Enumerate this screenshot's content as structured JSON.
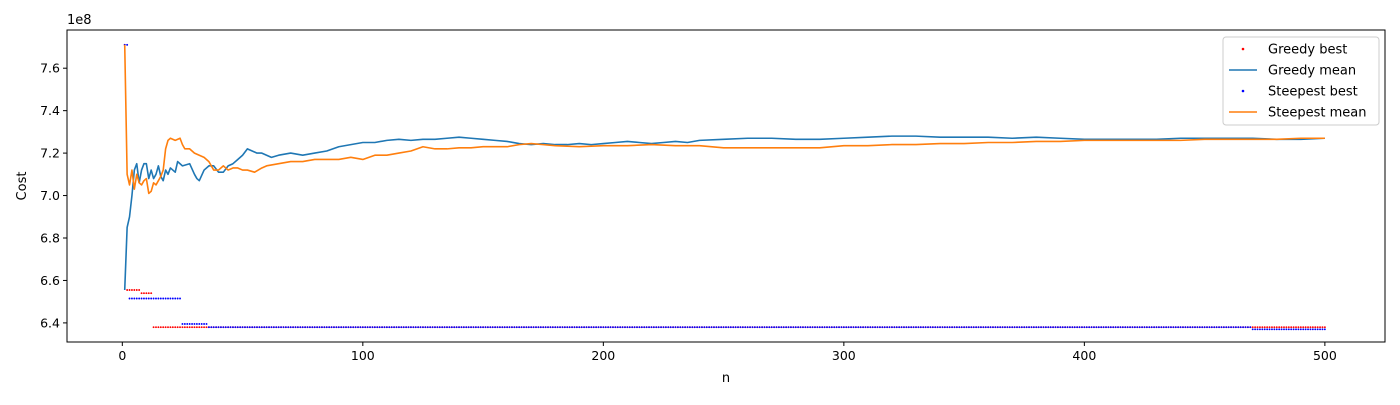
{
  "chart_data": {
    "type": "line",
    "xlabel": "n",
    "ylabel": "Cost",
    "y_offset_label": "1e8",
    "xlim": [
      -23,
      525
    ],
    "ylim": [
      6.31,
      7.78
    ],
    "xticks": [
      0,
      100,
      200,
      300,
      400,
      500
    ],
    "yticks": [
      6.4,
      6.6,
      6.8,
      7.0,
      7.2,
      7.4,
      7.6
    ],
    "ytick_labels": [
      "6.4",
      "6.6",
      "6.8",
      "7.0",
      "7.2",
      "7.4",
      "7.6"
    ],
    "grid": false,
    "legend": "top-right",
    "series": [
      {
        "name": "Greedy best",
        "style": "points",
        "color": "#ff0000",
        "steps": [
          [
            1,
            7.71
          ],
          [
            2,
            6.555
          ],
          [
            8,
            6.54
          ],
          [
            13,
            6.38
          ],
          [
            470,
            6.38
          ],
          [
            501,
            6.38
          ]
        ]
      },
      {
        "name": "Greedy mean",
        "style": "line",
        "color": "#1f77b4",
        "points": [
          [
            1,
            6.555
          ],
          [
            2,
            6.85
          ],
          [
            3,
            6.9
          ],
          [
            4,
            7.0
          ],
          [
            5,
            7.12
          ],
          [
            6,
            7.15
          ],
          [
            7,
            7.06
          ],
          [
            8,
            7.12
          ],
          [
            9,
            7.15
          ],
          [
            10,
            7.15
          ],
          [
            11,
            7.08
          ],
          [
            12,
            7.12
          ],
          [
            13,
            7.08
          ],
          [
            14,
            7.1
          ],
          [
            15,
            7.14
          ],
          [
            16,
            7.09
          ],
          [
            17,
            7.07
          ],
          [
            18,
            7.12
          ],
          [
            19,
            7.1
          ],
          [
            20,
            7.13
          ],
          [
            22,
            7.11
          ],
          [
            23,
            7.16
          ],
          [
            25,
            7.14
          ],
          [
            28,
            7.15
          ],
          [
            30,
            7.1
          ],
          [
            31,
            7.08
          ],
          [
            32,
            7.07
          ],
          [
            34,
            7.12
          ],
          [
            36,
            7.14
          ],
          [
            38,
            7.14
          ],
          [
            40,
            7.11
          ],
          [
            42,
            7.11
          ],
          [
            44,
            7.14
          ],
          [
            46,
            7.15
          ],
          [
            48,
            7.17
          ],
          [
            50,
            7.19
          ],
          [
            52,
            7.22
          ],
          [
            54,
            7.21
          ],
          [
            56,
            7.2
          ],
          [
            58,
            7.2
          ],
          [
            60,
            7.19
          ],
          [
            62,
            7.18
          ],
          [
            65,
            7.19
          ],
          [
            70,
            7.2
          ],
          [
            75,
            7.19
          ],
          [
            80,
            7.2
          ],
          [
            85,
            7.21
          ],
          [
            90,
            7.23
          ],
          [
            95,
            7.24
          ],
          [
            100,
            7.25
          ],
          [
            105,
            7.25
          ],
          [
            110,
            7.26
          ],
          [
            115,
            7.265
          ],
          [
            120,
            7.26
          ],
          [
            125,
            7.265
          ],
          [
            130,
            7.265
          ],
          [
            135,
            7.27
          ],
          [
            140,
            7.275
          ],
          [
            145,
            7.27
          ],
          [
            150,
            7.265
          ],
          [
            155,
            7.26
          ],
          [
            160,
            7.255
          ],
          [
            165,
            7.245
          ],
          [
            170,
            7.24
          ],
          [
            175,
            7.245
          ],
          [
            180,
            7.24
          ],
          [
            185,
            7.24
          ],
          [
            190,
            7.245
          ],
          [
            195,
            7.24
          ],
          [
            200,
            7.245
          ],
          [
            205,
            7.25
          ],
          [
            210,
            7.255
          ],
          [
            215,
            7.25
          ],
          [
            220,
            7.245
          ],
          [
            225,
            7.25
          ],
          [
            230,
            7.255
          ],
          [
            235,
            7.25
          ],
          [
            240,
            7.26
          ],
          [
            250,
            7.265
          ],
          [
            260,
            7.27
          ],
          [
            270,
            7.27
          ],
          [
            280,
            7.265
          ],
          [
            290,
            7.265
          ],
          [
            300,
            7.27
          ],
          [
            310,
            7.275
          ],
          [
            320,
            7.28
          ],
          [
            330,
            7.28
          ],
          [
            340,
            7.275
          ],
          [
            350,
            7.275
          ],
          [
            360,
            7.275
          ],
          [
            370,
            7.27
          ],
          [
            380,
            7.275
          ],
          [
            390,
            7.27
          ],
          [
            400,
            7.265
          ],
          [
            410,
            7.265
          ],
          [
            420,
            7.265
          ],
          [
            430,
            7.265
          ],
          [
            440,
            7.27
          ],
          [
            450,
            7.27
          ],
          [
            460,
            7.27
          ],
          [
            470,
            7.27
          ],
          [
            480,
            7.265
          ],
          [
            490,
            7.265
          ],
          [
            500,
            7.27
          ]
        ]
      },
      {
        "name": "Steepest best",
        "style": "points",
        "color": "#0000ff",
        "steps": [
          [
            1,
            7.71
          ],
          [
            3,
            6.515
          ],
          [
            25,
            6.395
          ],
          [
            36,
            6.38
          ],
          [
            470,
            6.37
          ],
          [
            501,
            6.37
          ]
        ]
      },
      {
        "name": "Steepest mean",
        "style": "line",
        "color": "#ff7f0e",
        "points": [
          [
            1,
            7.71
          ],
          [
            2,
            7.1
          ],
          [
            3,
            7.05
          ],
          [
            4,
            7.12
          ],
          [
            5,
            7.03
          ],
          [
            6,
            7.1
          ],
          [
            7,
            7.06
          ],
          [
            8,
            7.05
          ],
          [
            9,
            7.07
          ],
          [
            10,
            7.08
          ],
          [
            11,
            7.01
          ],
          [
            12,
            7.02
          ],
          [
            13,
            7.06
          ],
          [
            14,
            7.05
          ],
          [
            15,
            7.07
          ],
          [
            16,
            7.09
          ],
          [
            17,
            7.12
          ],
          [
            18,
            7.22
          ],
          [
            19,
            7.26
          ],
          [
            20,
            7.27
          ],
          [
            22,
            7.26
          ],
          [
            24,
            7.27
          ],
          [
            25,
            7.24
          ],
          [
            26,
            7.22
          ],
          [
            28,
            7.22
          ],
          [
            30,
            7.2
          ],
          [
            32,
            7.19
          ],
          [
            34,
            7.18
          ],
          [
            36,
            7.16
          ],
          [
            38,
            7.12
          ],
          [
            40,
            7.12
          ],
          [
            42,
            7.14
          ],
          [
            44,
            7.12
          ],
          [
            46,
            7.13
          ],
          [
            48,
            7.13
          ],
          [
            50,
            7.12
          ],
          [
            52,
            7.12
          ],
          [
            55,
            7.11
          ],
          [
            58,
            7.13
          ],
          [
            60,
            7.14
          ],
          [
            65,
            7.15
          ],
          [
            70,
            7.16
          ],
          [
            75,
            7.16
          ],
          [
            80,
            7.17
          ],
          [
            85,
            7.17
          ],
          [
            90,
            7.17
          ],
          [
            95,
            7.18
          ],
          [
            100,
            7.17
          ],
          [
            105,
            7.19
          ],
          [
            110,
            7.19
          ],
          [
            115,
            7.2
          ],
          [
            120,
            7.21
          ],
          [
            125,
            7.23
          ],
          [
            130,
            7.22
          ],
          [
            135,
            7.22
          ],
          [
            140,
            7.225
          ],
          [
            145,
            7.225
          ],
          [
            150,
            7.23
          ],
          [
            155,
            7.23
          ],
          [
            160,
            7.23
          ],
          [
            165,
            7.24
          ],
          [
            170,
            7.245
          ],
          [
            175,
            7.24
          ],
          [
            180,
            7.235
          ],
          [
            190,
            7.23
          ],
          [
            200,
            7.235
          ],
          [
            210,
            7.235
          ],
          [
            220,
            7.24
          ],
          [
            230,
            7.235
          ],
          [
            240,
            7.235
          ],
          [
            250,
            7.225
          ],
          [
            260,
            7.225
          ],
          [
            270,
            7.225
          ],
          [
            280,
            7.225
          ],
          [
            290,
            7.225
          ],
          [
            300,
            7.235
          ],
          [
            310,
            7.235
          ],
          [
            320,
            7.24
          ],
          [
            330,
            7.24
          ],
          [
            340,
            7.245
          ],
          [
            350,
            7.245
          ],
          [
            360,
            7.25
          ],
          [
            370,
            7.25
          ],
          [
            380,
            7.255
          ],
          [
            390,
            7.255
          ],
          [
            400,
            7.26
          ],
          [
            410,
            7.26
          ],
          [
            420,
            7.26
          ],
          [
            430,
            7.26
          ],
          [
            440,
            7.26
          ],
          [
            450,
            7.265
          ],
          [
            460,
            7.265
          ],
          [
            470,
            7.265
          ],
          [
            480,
            7.265
          ],
          [
            490,
            7.27
          ],
          [
            500,
            7.27
          ]
        ]
      }
    ]
  }
}
